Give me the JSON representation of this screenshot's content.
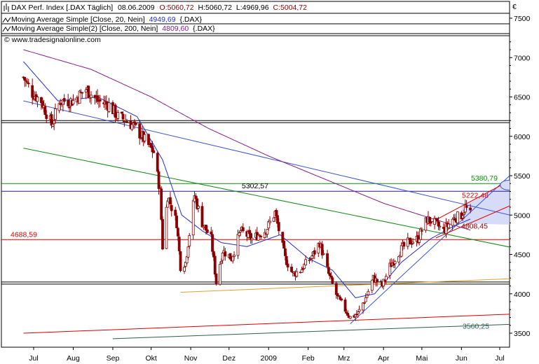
{
  "legend": {
    "row1": {
      "name": "DAX Perf. Index [.DAX  Täglich]",
      "date": "08.06.2009",
      "open": "O:5060,72",
      "high": "H:5060,72",
      "low": "L:4969,96",
      "close": "C:5004,72"
    },
    "row2": {
      "name": "Moving Average Simple [Close, 20, Nein]",
      "value": "4949,69",
      "symbol": "{.DAX}"
    },
    "row3": {
      "name": "Moving Average Simple(2) [Close, 200, Nein]",
      "value": "4809,60",
      "symbol": "{.DAX}"
    }
  },
  "copyright": "© www.tradesignalonline.com",
  "currency": "€",
  "colors": {
    "price": "#8b0000",
    "ma20": "#1f2fd6",
    "ma200": "#8b1a8b",
    "up": "#ffffff",
    "down": "#8b0000",
    "support": "#e00000",
    "resistance_blue": "#3a55d0",
    "green_line": "#138a13",
    "orange_line": "#e0a030",
    "channel_fill": "#c8cff5"
  },
  "chart_data": {
    "type": "candlestick",
    "title": "DAX Perf. Index [.DAX  Täglich]",
    "ylim": [
      3350,
      7650
    ],
    "yticks": [
      3500,
      4000,
      4500,
      5000,
      5500,
      6000,
      6500,
      7000,
      7500
    ],
    "ytick_labels": [
      "3500",
      "4000",
      "4500",
      "5000",
      "5500",
      "6000",
      "6500",
      "7000",
      "7500"
    ],
    "xlim": [
      "2008-06-23",
      "2009-07-22"
    ],
    "xticks": [
      "2008-07-01",
      "2008-08-01",
      "2008-09-01",
      "2008-10-01",
      "2008-11-01",
      "2008-12-01",
      "2009-01-01",
      "2009-02-01",
      "2009-03-01",
      "2009-04-01",
      "2009-05-01",
      "2009-06-01",
      "2009-07-01"
    ],
    "xtick_labels": [
      "Jul",
      "Aug",
      "Sep",
      "Okt",
      "Nov",
      "Dez",
      "2009",
      "Feb",
      "Mrz",
      "Apr",
      "Mai",
      "Jun",
      "Jul"
    ],
    "close_anchors": [
      [
        "2008-06-23",
        6750
      ],
      [
        "2008-06-30",
        6550
      ],
      [
        "2008-07-07",
        6450
      ],
      [
        "2008-07-15",
        6150
      ],
      [
        "2008-07-22",
        6450
      ],
      [
        "2008-08-01",
        6450
      ],
      [
        "2008-08-11",
        6600
      ],
      [
        "2008-08-20",
        6450
      ],
      [
        "2008-08-29",
        6400
      ],
      [
        "2008-09-05",
        6250
      ],
      [
        "2008-09-12",
        6200
      ],
      [
        "2008-09-19",
        6100
      ],
      [
        "2008-09-26",
        5950
      ],
      [
        "2008-10-03",
        5800
      ],
      [
        "2008-10-08",
        5300
      ],
      [
        "2008-10-10",
        4600
      ],
      [
        "2008-10-14",
        5250
      ],
      [
        "2008-10-21",
        4900
      ],
      [
        "2008-10-24",
        4350
      ],
      [
        "2008-10-28",
        4400
      ],
      [
        "2008-11-04",
        5250
      ],
      [
        "2008-11-10",
        4900
      ],
      [
        "2008-11-17",
        4700
      ],
      [
        "2008-11-21",
        4150
      ],
      [
        "2008-11-26",
        4550
      ],
      [
        "2008-12-03",
        4450
      ],
      [
        "2008-12-10",
        4800
      ],
      [
        "2008-12-19",
        4700
      ],
      [
        "2008-12-30",
        4810
      ],
      [
        "2009-01-06",
        5030
      ],
      [
        "2009-01-14",
        4450
      ],
      [
        "2009-01-20",
        4250
      ],
      [
        "2009-01-26",
        4300
      ],
      [
        "2009-02-05",
        4500
      ],
      [
        "2009-02-10",
        4650
      ],
      [
        "2009-02-17",
        4250
      ],
      [
        "2009-02-24",
        3950
      ],
      [
        "2009-03-02",
        3800
      ],
      [
        "2009-03-06",
        3700
      ],
      [
        "2009-03-12",
        3750
      ],
      [
        "2009-03-18",
        3950
      ],
      [
        "2009-03-24",
        4200
      ],
      [
        "2009-03-31",
        4100
      ],
      [
        "2009-04-06",
        4350
      ],
      [
        "2009-04-14",
        4550
      ],
      [
        "2009-04-20",
        4650
      ],
      [
        "2009-04-28",
        4700
      ],
      [
        "2009-05-05",
        4950
      ],
      [
        "2009-05-11",
        4900
      ],
      [
        "2009-05-18",
        4800
      ],
      [
        "2009-05-25",
        4950
      ],
      [
        "2009-06-01",
        5000
      ],
      [
        "2009-06-04",
        5100
      ],
      [
        "2009-06-08",
        5004.72
      ]
    ],
    "ma20_anchors": [
      [
        "2008-06-23",
        6950
      ],
      [
        "2008-07-20",
        6450
      ],
      [
        "2008-08-20",
        6500
      ],
      [
        "2008-09-20",
        6250
      ],
      [
        "2008-10-10",
        5700
      ],
      [
        "2008-10-25",
        5000
      ],
      [
        "2008-11-10",
        4800
      ],
      [
        "2008-11-25",
        4650
      ],
      [
        "2008-12-15",
        4600
      ],
      [
        "2009-01-10",
        4750
      ],
      [
        "2009-02-01",
        4450
      ],
      [
        "2009-02-20",
        4300
      ],
      [
        "2009-03-10",
        3950
      ],
      [
        "2009-03-25",
        4000
      ],
      [
        "2009-04-15",
        4400
      ],
      [
        "2009-05-08",
        4700
      ],
      [
        "2009-05-25",
        4850
      ],
      [
        "2009-06-08",
        4949.69
      ]
    ],
    "ma200_anchors": [
      [
        "2008-06-23",
        7100
      ],
      [
        "2008-08-15",
        6850
      ],
      [
        "2008-10-01",
        6500
      ],
      [
        "2008-11-15",
        6100
      ],
      [
        "2009-01-01",
        5750
      ],
      [
        "2009-02-15",
        5450
      ],
      [
        "2009-04-01",
        5150
      ],
      [
        "2009-05-10",
        4950
      ],
      [
        "2009-06-08",
        4809.6
      ]
    ],
    "horizontal_lines": [
      {
        "y": 6200,
        "color": "#000000",
        "double": true
      },
      {
        "y": 5400,
        "color": "#138a13"
      },
      {
        "y": 5302.57,
        "color": "#2a1a8c",
        "label": "5302,57"
      },
      {
        "y": 4688.59,
        "color": "#e00000",
        "label": "4688,59"
      },
      {
        "y": 4150,
        "color": "#000000",
        "double": true
      }
    ],
    "trend_lines": [
      {
        "p1": [
          "2008-06-23",
          6450
        ],
        "p2": [
          "2009-07-22",
          4950
        ],
        "color": "#3a55d0"
      },
      {
        "p1": [
          "2008-06-23",
          5850
        ],
        "p2": [
          "2009-07-22",
          4550
        ],
        "color": "#138a13"
      },
      {
        "p1": [
          "2008-10-24",
          4020
        ],
        "p2": [
          "2009-07-22",
          4200
        ],
        "color": "#e0a030"
      },
      {
        "p1": [
          "2008-06-23",
          3500
        ],
        "p2": [
          "2009-07-22",
          3750
        ],
        "color": "#e00000"
      },
      {
        "p1": [
          "2008-09-01",
          3430
        ],
        "p2": [
          "2009-07-22",
          3620
        ],
        "color": "#2e5e52"
      },
      {
        "p1": [
          "2009-03-06",
          3620
        ],
        "p2": [
          "2009-07-22",
          5700
        ],
        "color": "#3a55d0"
      },
      {
        "p1": [
          "2009-05-05",
          4880
        ],
        "p2": [
          "2009-07-22",
          5550
        ],
        "color": "#e00000"
      },
      {
        "p1": [
          "2009-05-12",
          4710
        ],
        "p2": [
          "2009-07-22",
          5210
        ],
        "color": "#e00000"
      }
    ],
    "annotations": [
      {
        "text": "5302,57",
        "color": "#000000"
      },
      {
        "text": "4688,59",
        "color": "#e00000"
      },
      {
        "text": "5380,79",
        "color": "#138a13"
      },
      {
        "text": "5222,48",
        "color": "#e00000"
      },
      {
        "text": "4808,45",
        "color": "#8b0000"
      },
      {
        "text": "3560,25",
        "color": "#2e5e52"
      }
    ]
  }
}
